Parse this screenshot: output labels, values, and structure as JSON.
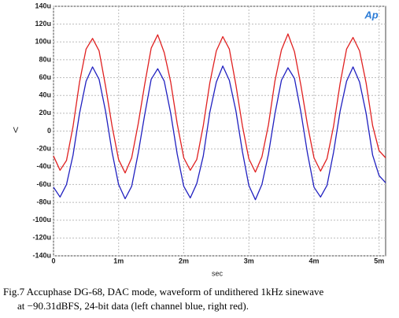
{
  "chart_data": {
    "type": "line",
    "logo": "Ap",
    "xlabel": "sec",
    "ylabel": "V",
    "caption": [
      "Fig.7 Accuphase DG-68, DAC mode, waveform of undithered 1kHz sinewave",
      "at −90.31dBFS, 24-bit data (left channel blue, right red)."
    ],
    "x": [
      0,
      0.1,
      0.2,
      0.3,
      0.4,
      0.5,
      0.6,
      0.7,
      0.8,
      0.9,
      1,
      1.1,
      1.2,
      1.3,
      1.4,
      1.5,
      1.6,
      1.7,
      1.8,
      1.9,
      2,
      2.1,
      2.2,
      2.3,
      2.4,
      2.5,
      2.6,
      2.7,
      2.8,
      2.9,
      3,
      3.1,
      3.2,
      3.3,
      3.4,
      3.5,
      3.6,
      3.7,
      3.8,
      3.9,
      4,
      4.1,
      4.2,
      4.3,
      4.4,
      4.5,
      4.6,
      4.7,
      4.8,
      4.9,
      5,
      5.1
    ],
    "series": [
      {
        "name": "right",
        "color": "#e02020",
        "values": [
          -28,
          -44,
          -33,
          5,
          55,
          92,
          104,
          90,
          50,
          5,
          -32,
          -47,
          -30,
          8,
          52,
          93,
          108,
          88,
          55,
          8,
          -30,
          -44,
          -32,
          6,
          54,
          90,
          106,
          92,
          52,
          6,
          -31,
          -46,
          -29,
          7,
          56,
          91,
          109,
          89,
          51,
          7,
          -30,
          -45,
          -31,
          5,
          53,
          92,
          105,
          90,
          54,
          6,
          -22,
          -30
        ]
      },
      {
        "name": "left",
        "color": "#2020c0",
        "values": [
          -63,
          -74,
          -60,
          -27,
          20,
          56,
          72,
          58,
          22,
          -24,
          -60,
          -76,
          -62,
          -25,
          18,
          58,
          70,
          56,
          20,
          -26,
          -62,
          -75,
          -59,
          -28,
          21,
          55,
          73,
          57,
          23,
          -23,
          -61,
          -77,
          -60,
          -26,
          19,
          57,
          71,
          59,
          21,
          -25,
          -63,
          -74,
          -61,
          -24,
          22,
          56,
          72,
          55,
          20,
          -27,
          -50,
          -58
        ]
      }
    ],
    "xlim": [
      0,
      5.1
    ],
    "xticks": [
      0,
      {
        "value": 1,
        "label": "1m"
      },
      {
        "value": 2,
        "label": "2m"
      },
      {
        "value": 3,
        "label": "3m"
      },
      {
        "value": 4,
        "label": "4m"
      },
      {
        "value": 5,
        "label": "5m"
      }
    ],
    "ylim": [
      -140,
      140
    ],
    "yticks": [
      {
        "value": -140,
        "label": "-140u"
      },
      {
        "value": -120,
        "label": "-120u"
      },
      {
        "value": -100,
        "label": "-100u"
      },
      {
        "value": -80,
        "label": "-80u"
      },
      {
        "value": -60,
        "label": "-60u"
      },
      {
        "value": -40,
        "label": "-40u"
      },
      {
        "value": -20,
        "label": "-20u"
      },
      0,
      {
        "value": 20,
        "label": "20u"
      },
      {
        "value": 40,
        "label": "40u"
      },
      {
        "value": 60,
        "label": "60u"
      },
      {
        "value": 80,
        "label": "80u"
      },
      {
        "value": 100,
        "label": "100u"
      },
      {
        "value": 120,
        "label": "120u"
      },
      {
        "value": 140,
        "label": "140u"
      }
    ],
    "grid": true
  }
}
